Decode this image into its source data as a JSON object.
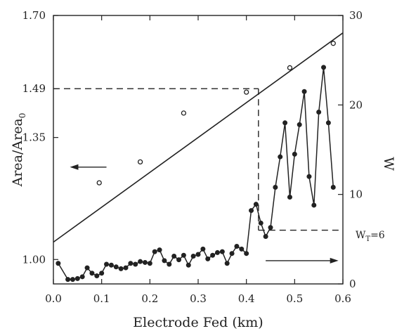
{
  "chart_data": {
    "type": "scatter",
    "xlabel": "Electrode Fed (km)",
    "ylabel_left": "Area/Area",
    "ylabel_left_subscript": "0",
    "ylabel_right": "W",
    "xlim": [
      0.0,
      0.6
    ],
    "ylim_left": [
      0.93,
      1.7
    ],
    "ylim_right": [
      0,
      30
    ],
    "x_ticks": [
      "0.0",
      "0.1",
      "0.2",
      "0.3",
      "0.4",
      "0.5",
      "0.6"
    ],
    "y_left_ticks": [
      {
        "value": 1.0,
        "label": "1.00"
      },
      {
        "value": 1.35,
        "label": "1.35"
      },
      {
        "value": 1.49,
        "label": "1.49"
      },
      {
        "value": 1.7,
        "label": "1.70"
      }
    ],
    "y_right_ticks": [
      "0",
      "10",
      "20",
      "30"
    ],
    "series": [
      {
        "axis": "left",
        "marker": "open-circle",
        "x": [
          0.095,
          0.18,
          0.27,
          0.4,
          0.49,
          0.58
        ],
        "y": [
          1.22,
          1.28,
          1.42,
          1.48,
          1.55,
          1.62
        ]
      },
      {
        "axis": "left",
        "style": "line",
        "x": [
          0.0,
          0.6
        ],
        "y": [
          1.05,
          1.65
        ]
      },
      {
        "axis": "right",
        "style": "line-markers",
        "x": [
          0.01,
          0.03,
          0.04,
          0.05,
          0.06,
          0.07,
          0.08,
          0.09,
          0.1,
          0.11,
          0.12,
          0.13,
          0.14,
          0.15,
          0.16,
          0.17,
          0.18,
          0.19,
          0.2,
          0.21,
          0.22,
          0.23,
          0.24,
          0.25,
          0.26,
          0.27,
          0.28,
          0.29,
          0.3,
          0.31,
          0.32,
          0.33,
          0.34,
          0.35,
          0.36,
          0.37,
          0.38,
          0.39,
          0.4,
          0.41,
          0.42,
          0.43,
          0.44,
          0.45,
          0.46,
          0.47,
          0.48,
          0.49,
          0.5,
          0.51,
          0.52,
          0.53,
          0.54,
          0.55,
          0.56,
          0.57,
          0.58
        ],
        "y": [
          2.3,
          0.5,
          0.5,
          0.6,
          0.8,
          1.8,
          1.2,
          0.9,
          1.2,
          2.2,
          2.1,
          1.9,
          1.7,
          1.8,
          2.3,
          2.2,
          2.5,
          2.4,
          2.3,
          3.6,
          3.8,
          2.6,
          2.2,
          3.1,
          2.7,
          3.2,
          2.1,
          3.1,
          3.3,
          3.9,
          2.8,
          3.2,
          3.5,
          3.6,
          2.3,
          3.4,
          4.2,
          3.9,
          3.4,
          8.2,
          8.9,
          6.8,
          5.3,
          6.3,
          10.8,
          14.2,
          18.0,
          9.7,
          14.5,
          17.8,
          21.5,
          12.0,
          8.8,
          19.2,
          24.2,
          18.0,
          10.8
        ]
      }
    ],
    "guides": {
      "area_level": 1.49,
      "x_cross": 0.425,
      "w_threshold": 6
    },
    "annotations": {
      "threshold_label": "W",
      "threshold_subscript": "T",
      "threshold_value": "=6"
    }
  }
}
